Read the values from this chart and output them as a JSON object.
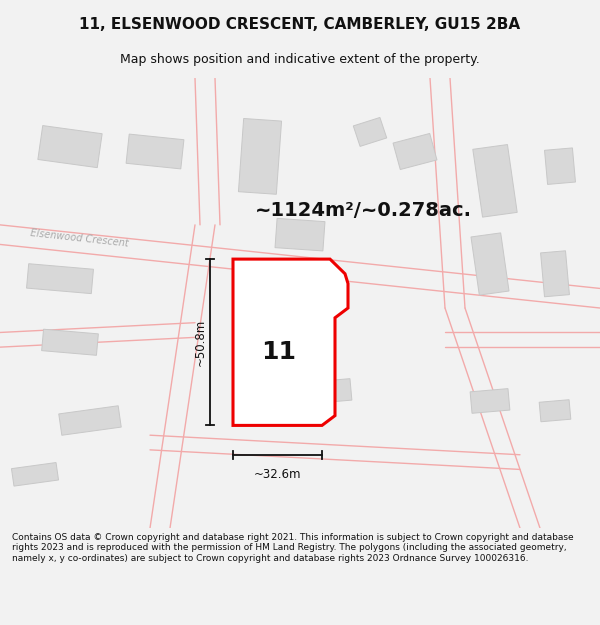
{
  "title": "11, ELSENWOOD CRESCENT, CAMBERLEY, GU15 2BA",
  "subtitle": "Map shows position and indicative extent of the property.",
  "footer": "Contains OS data © Crown copyright and database right 2021. This information is subject to Crown copyright and database rights 2023 and is reproduced with the permission of HM Land Registry. The polygons (including the associated geometry, namely x, y co-ordinates) are subject to Crown copyright and database rights 2023 Ordnance Survey 100026316.",
  "area_label": "~1124m²/~0.278ac.",
  "width_label": "~32.6m",
  "height_label": "~50.8m",
  "plot_number": "11",
  "bg_color": "#f2f2f2",
  "map_bg": "#ffffff",
  "road_color": "#f2aaaa",
  "building_color": "#d8d8d8",
  "building_edge": "#c8c8c8",
  "plot_color": "#ee0000",
  "dim_color": "#111111",
  "title_color": "#111111",
  "footer_color": "#111111",
  "street_label_color": "#aaaaaa",
  "title_fontsize": 11,
  "subtitle_fontsize": 9,
  "footer_fontsize": 6.5,
  "area_fontsize": 14,
  "plot_num_fontsize": 18,
  "dim_fontsize": 8.5,
  "street_fontsize": 7,
  "road_lw": 1.0,
  "plot_lw": 2.2
}
